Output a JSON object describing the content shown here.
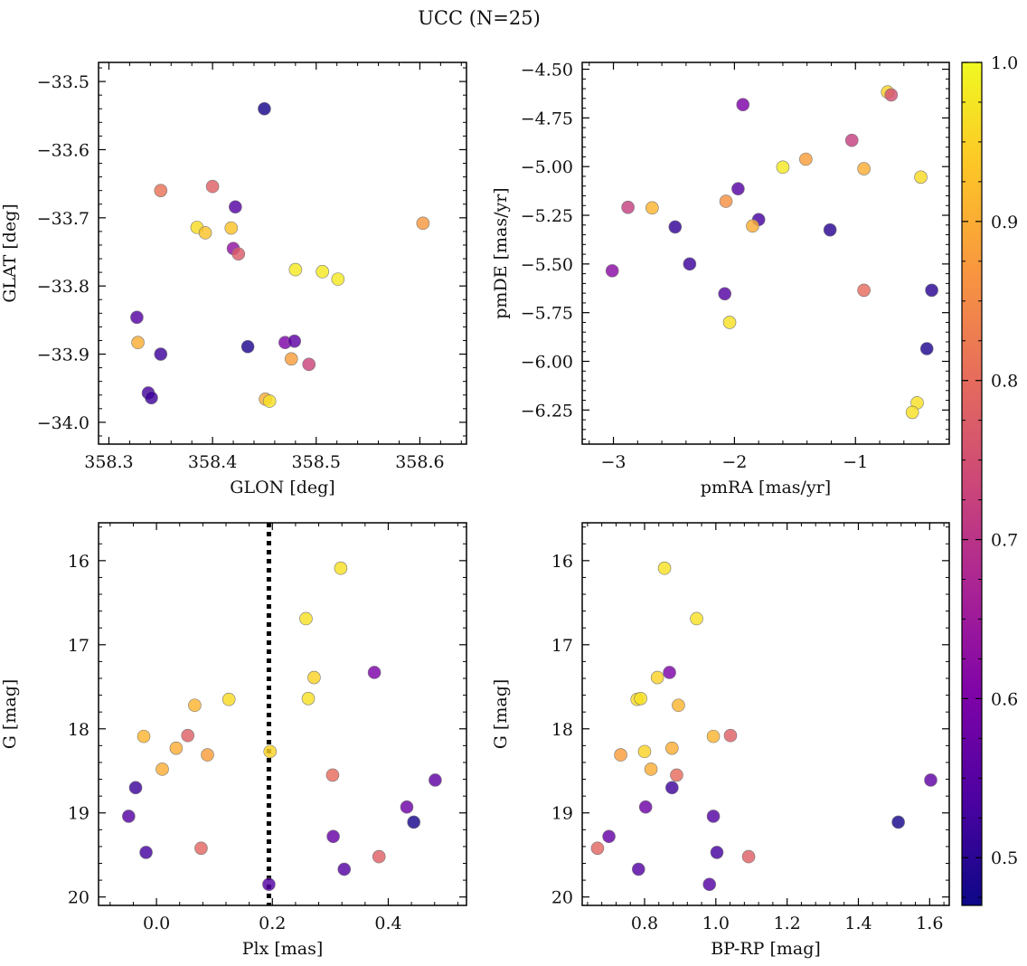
{
  "chart_data": {
    "suptitle": "UCC (N=25)",
    "colorbar": {
      "min": 0.47,
      "max": 1.0,
      "ticks": [
        0.5,
        0.6,
        0.7,
        0.8,
        0.9,
        1.0
      ],
      "tick_labels": [
        "0.5",
        "0.6",
        "0.7",
        "0.8",
        "0.9",
        "1.0"
      ],
      "colormap": "plasma"
    },
    "panels": [
      {
        "type": "scatter",
        "xlabel": "GLON [deg]",
        "ylabel": "GLAT [deg]",
        "xlim": [
          358.29,
          358.645
        ],
        "ylim": [
          -34.032,
          -33.472
        ],
        "xticks": [
          358.3,
          358.4,
          358.5,
          358.6
        ],
        "xtick_labels": [
          "358.3",
          "358.4",
          "358.5",
          "358.6"
        ],
        "yticks": [
          -33.5,
          -33.6,
          -33.7,
          -33.8,
          -33.9,
          -34.0
        ],
        "ytick_labels": [
          "−33.5",
          "−33.6",
          "−33.7",
          "−33.8",
          "−33.9",
          "−34.0"
        ],
        "points": [
          {
            "x": 358.45,
            "y": -33.54,
            "c": 0.48
          },
          {
            "x": 358.35,
            "y": -33.66,
            "c": 0.81
          },
          {
            "x": 358.4,
            "y": -33.654,
            "c": 0.78
          },
          {
            "x": 358.422,
            "y": -33.684,
            "c": 0.55
          },
          {
            "x": 358.385,
            "y": -33.714,
            "c": 0.96
          },
          {
            "x": 358.393,
            "y": -33.722,
            "c": 0.93
          },
          {
            "x": 358.418,
            "y": -33.715,
            "c": 0.93
          },
          {
            "x": 358.603,
            "y": -33.708,
            "c": 0.87
          },
          {
            "x": 358.42,
            "y": -33.745,
            "c": 0.63
          },
          {
            "x": 358.425,
            "y": -33.753,
            "c": 0.77
          },
          {
            "x": 358.48,
            "y": -33.776,
            "c": 0.98
          },
          {
            "x": 358.506,
            "y": -33.779,
            "c": 0.98
          },
          {
            "x": 358.521,
            "y": -33.79,
            "c": 0.98
          },
          {
            "x": 358.327,
            "y": -33.846,
            "c": 0.55
          },
          {
            "x": 358.328,
            "y": -33.883,
            "c": 0.9
          },
          {
            "x": 358.35,
            "y": -33.9,
            "c": 0.52
          },
          {
            "x": 358.434,
            "y": -33.889,
            "c": 0.49
          },
          {
            "x": 358.47,
            "y": -33.883,
            "c": 0.6
          },
          {
            "x": 358.479,
            "y": -33.881,
            "c": 0.56
          },
          {
            "x": 358.476,
            "y": -33.907,
            "c": 0.88
          },
          {
            "x": 358.493,
            "y": -33.915,
            "c": 0.73
          },
          {
            "x": 358.338,
            "y": -33.957,
            "c": 0.53
          },
          {
            "x": 358.341,
            "y": -33.964,
            "c": 0.52
          },
          {
            "x": 358.451,
            "y": -33.966,
            "c": 0.9
          },
          {
            "x": 358.455,
            "y": -33.969,
            "c": 0.97
          }
        ]
      },
      {
        "type": "scatter",
        "xlabel": "pmRA [mas/yr]",
        "ylabel": "pmDE [mas/yr]",
        "xlim": [
          -3.258,
          -0.225
        ],
        "ylim": [
          -6.425,
          -4.465
        ],
        "xticks": [
          -3,
          -2,
          -1
        ],
        "xtick_labels": [
          "−3",
          "−2",
          "−1"
        ],
        "yticks": [
          -4.5,
          -4.75,
          -5.0,
          -5.25,
          -5.5,
          -5.75,
          -6.0,
          -6.25
        ],
        "ytick_labels": [
          "−4.50",
          "−4.75",
          "−5.00",
          "−5.25",
          "−5.50",
          "−5.75",
          "−6.00",
          "−6.25"
        ],
        "points": [
          {
            "x": -0.735,
            "y": -4.617,
            "c": 0.95
          },
          {
            "x": -0.705,
            "y": -4.632,
            "c": 0.75
          },
          {
            "x": -1.93,
            "y": -4.682,
            "c": 0.6
          },
          {
            "x": -1.03,
            "y": -4.865,
            "c": 0.72
          },
          {
            "x": -1.41,
            "y": -4.962,
            "c": 0.88
          },
          {
            "x": -1.6,
            "y": -5.003,
            "c": 0.98
          },
          {
            "x": -0.93,
            "y": -5.011,
            "c": 0.9
          },
          {
            "x": -0.46,
            "y": -5.054,
            "c": 0.96
          },
          {
            "x": -1.97,
            "y": -5.114,
            "c": 0.55
          },
          {
            "x": -2.07,
            "y": -5.178,
            "c": 0.86
          },
          {
            "x": -2.88,
            "y": -5.209,
            "c": 0.72
          },
          {
            "x": -2.68,
            "y": -5.212,
            "c": 0.91
          },
          {
            "x": -1.8,
            "y": -5.272,
            "c": 0.53
          },
          {
            "x": -1.85,
            "y": -5.305,
            "c": 0.9
          },
          {
            "x": -2.49,
            "y": -5.31,
            "c": 0.51
          },
          {
            "x": -1.21,
            "y": -5.325,
            "c": 0.5
          },
          {
            "x": -2.37,
            "y": -5.5,
            "c": 0.52
          },
          {
            "x": -3.01,
            "y": -5.535,
            "c": 0.62
          },
          {
            "x": -0.93,
            "y": -5.635,
            "c": 0.8
          },
          {
            "x": -0.37,
            "y": -5.635,
            "c": 0.5
          },
          {
            "x": -2.08,
            "y": -5.653,
            "c": 0.55
          },
          {
            "x": -2.04,
            "y": -5.8,
            "c": 0.97
          },
          {
            "x": -0.41,
            "y": -5.935,
            "c": 0.49
          },
          {
            "x": -0.49,
            "y": -6.213,
            "c": 0.97
          },
          {
            "x": -0.53,
            "y": -6.262,
            "c": 0.97
          }
        ]
      },
      {
        "type": "scatter",
        "xlabel": "Plx [mas]",
        "ylabel": "G [mag]",
        "xlim": [
          -0.1,
          0.535
        ],
        "ylim": [
          20.1,
          15.55
        ],
        "xticks": [
          0.0,
          0.2,
          0.4
        ],
        "xtick_labels": [
          "0.0",
          "0.2",
          "0.4"
        ],
        "yticks": [
          16,
          17,
          18,
          19,
          20
        ],
        "ytick_labels": [
          "16",
          "17",
          "18",
          "19",
          "20"
        ],
        "vline": 0.194,
        "points": [
          {
            "x": 0.318,
            "y": 16.09,
            "c": 0.97
          },
          {
            "x": 0.258,
            "y": 16.69,
            "c": 0.97
          },
          {
            "x": 0.272,
            "y": 17.39,
            "c": 0.95
          },
          {
            "x": 0.376,
            "y": 17.33,
            "c": 0.6
          },
          {
            "x": 0.066,
            "y": 17.72,
            "c": 0.91
          },
          {
            "x": 0.125,
            "y": 17.65,
            "c": 0.96
          },
          {
            "x": 0.262,
            "y": 17.64,
            "c": 0.97
          },
          {
            "x": -0.022,
            "y": 18.09,
            "c": 0.91
          },
          {
            "x": 0.054,
            "y": 18.08,
            "c": 0.78
          },
          {
            "x": 0.034,
            "y": 18.23,
            "c": 0.9
          },
          {
            "x": 0.088,
            "y": 18.31,
            "c": 0.88
          },
          {
            "x": 0.01,
            "y": 18.48,
            "c": 0.9
          },
          {
            "x": 0.196,
            "y": 18.27,
            "c": 0.95
          },
          {
            "x": 0.304,
            "y": 18.55,
            "c": 0.8
          },
          {
            "x": -0.036,
            "y": 18.7,
            "c": 0.52
          },
          {
            "x": 0.481,
            "y": 18.61,
            "c": 0.56
          },
          {
            "x": -0.048,
            "y": 19.04,
            "c": 0.55
          },
          {
            "x": 0.432,
            "y": 18.93,
            "c": 0.58
          },
          {
            "x": 0.444,
            "y": 19.11,
            "c": 0.48
          },
          {
            "x": 0.305,
            "y": 19.28,
            "c": 0.57
          },
          {
            "x": -0.018,
            "y": 19.47,
            "c": 0.53
          },
          {
            "x": 0.077,
            "y": 19.42,
            "c": 0.79
          },
          {
            "x": 0.384,
            "y": 19.52,
            "c": 0.78
          },
          {
            "x": 0.324,
            "y": 19.67,
            "c": 0.55
          },
          {
            "x": 0.194,
            "y": 19.85,
            "c": 0.55
          }
        ]
      },
      {
        "type": "scatter",
        "xlabel": "BP-RP [mag]",
        "ylabel": "G [mag]",
        "xlim": [
          0.625,
          1.655
        ],
        "ylim": [
          20.1,
          15.55
        ],
        "xticks": [
          0.8,
          1.0,
          1.2,
          1.4,
          1.6
        ],
        "xtick_labels": [
          "0.8",
          "1.0",
          "1.2",
          "1.4",
          "1.6"
        ],
        "yticks": [
          16,
          17,
          18,
          19,
          20
        ],
        "ytick_labels": [
          "16",
          "17",
          "18",
          "19",
          "20"
        ],
        "points": [
          {
            "x": 0.856,
            "y": 16.09,
            "c": 0.97
          },
          {
            "x": 0.946,
            "y": 16.69,
            "c": 0.97
          },
          {
            "x": 0.836,
            "y": 17.39,
            "c": 0.95
          },
          {
            "x": 0.87,
            "y": 17.33,
            "c": 0.6
          },
          {
            "x": 0.779,
            "y": 17.65,
            "c": 0.96
          },
          {
            "x": 0.789,
            "y": 17.64,
            "c": 0.97
          },
          {
            "x": 0.895,
            "y": 17.72,
            "c": 0.91
          },
          {
            "x": 0.993,
            "y": 18.09,
            "c": 0.91
          },
          {
            "x": 1.041,
            "y": 18.08,
            "c": 0.78
          },
          {
            "x": 0.877,
            "y": 18.23,
            "c": 0.9
          },
          {
            "x": 0.733,
            "y": 18.31,
            "c": 0.88
          },
          {
            "x": 0.8,
            "y": 18.27,
            "c": 0.95
          },
          {
            "x": 0.818,
            "y": 18.48,
            "c": 0.9
          },
          {
            "x": 0.89,
            "y": 18.55,
            "c": 0.8
          },
          {
            "x": 0.877,
            "y": 18.7,
            "c": 0.52
          },
          {
            "x": 1.603,
            "y": 18.61,
            "c": 0.56
          },
          {
            "x": 0.803,
            "y": 18.93,
            "c": 0.58
          },
          {
            "x": 0.993,
            "y": 19.04,
            "c": 0.55
          },
          {
            "x": 1.512,
            "y": 19.11,
            "c": 0.48
          },
          {
            "x": 0.7,
            "y": 19.28,
            "c": 0.57
          },
          {
            "x": 0.668,
            "y": 19.42,
            "c": 0.79
          },
          {
            "x": 1.003,
            "y": 19.47,
            "c": 0.53
          },
          {
            "x": 1.092,
            "y": 19.52,
            "c": 0.78
          },
          {
            "x": 0.783,
            "y": 19.67,
            "c": 0.55
          },
          {
            "x": 0.982,
            "y": 19.85,
            "c": 0.55
          }
        ]
      }
    ]
  }
}
